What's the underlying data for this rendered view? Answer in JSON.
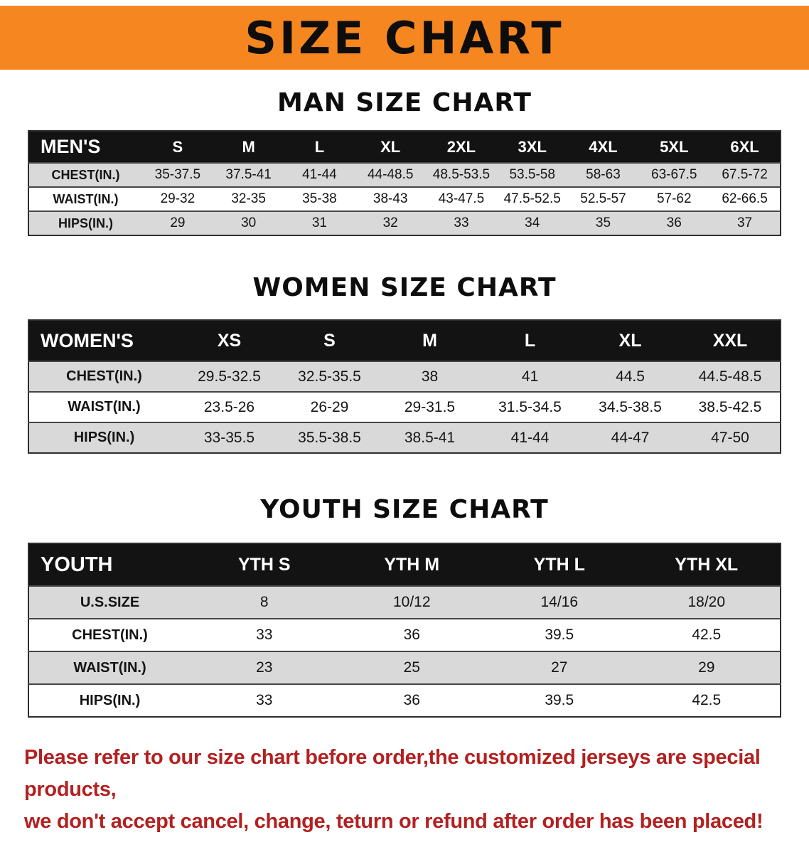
{
  "banner": {
    "title": "SIZE CHART",
    "background_color": "#f6861f",
    "text_color": "#0d0d0d"
  },
  "sections": [
    {
      "id": "men",
      "heading": "MAN SIZE CHART",
      "table": {
        "header": [
          "MEN'S",
          "S",
          "M",
          "L",
          "XL",
          "2XL",
          "3XL",
          "4XL",
          "5XL",
          "6XL"
        ],
        "rows": [
          [
            "CHEST(IN.)",
            "35-37.5",
            "37.5-41",
            "41-44",
            "44-48.5",
            "48.5-53.5",
            "53.5-58",
            "58-63",
            "63-67.5",
            "67.5-72"
          ],
          [
            "WAIST(IN.)",
            "29-32",
            "32-35",
            "35-38",
            "38-43",
            "43-47.5",
            "47.5-52.5",
            "52.5-57",
            "57-62",
            "62-66.5"
          ],
          [
            "HIPS(IN.)",
            "29",
            "30",
            "31",
            "32",
            "33",
            "34",
            "35",
            "36",
            "37"
          ]
        ]
      }
    },
    {
      "id": "women",
      "heading": "WOMEN SIZE CHART",
      "table": {
        "header": [
          "WOMEN'S",
          "XS",
          "S",
          "M",
          "L",
          "XL",
          "XXL"
        ],
        "rows": [
          [
            "CHEST(IN.)",
            "29.5-32.5",
            "32.5-35.5",
            "38",
            "41",
            "44.5",
            "44.5-48.5"
          ],
          [
            "WAIST(IN.)",
            "23.5-26",
            "26-29",
            "29-31.5",
            "31.5-34.5",
            "34.5-38.5",
            "38.5-42.5"
          ],
          [
            "HIPS(IN.)",
            "33-35.5",
            "35.5-38.5",
            "38.5-41",
            "41-44",
            "44-47",
            "47-50"
          ]
        ]
      }
    },
    {
      "id": "youth",
      "heading": "YOUTH SIZE CHART",
      "table": {
        "header": [
          "YOUTH",
          "YTH S",
          "YTH M",
          "YTH L",
          "YTH XL"
        ],
        "rows": [
          [
            "U.S.SIZE",
            "8",
            "10/12",
            "14/16",
            "18/20"
          ],
          [
            "CHEST(IN.)",
            "33",
            "36",
            "39.5",
            "42.5"
          ],
          [
            "WAIST(IN.)",
            "23",
            "25",
            "27",
            "29"
          ],
          [
            "HIPS(IN.)",
            "33",
            "36",
            "39.5",
            "42.5"
          ]
        ]
      }
    }
  ],
  "footer": {
    "text_color": "#b32020",
    "lines": [
      "Please refer to our size chart before order,the customized jerseys are special products,",
      "we don't accept cancel, change, teturn or refund after order has been placed!"
    ]
  }
}
